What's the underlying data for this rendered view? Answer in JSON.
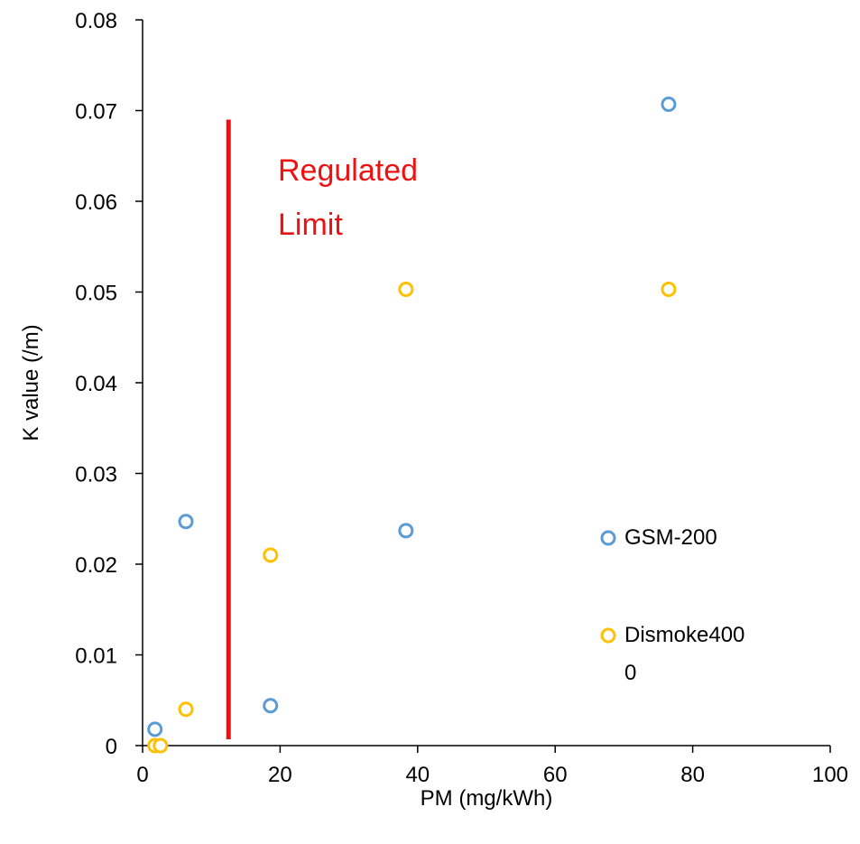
{
  "chart_data": {
    "type": "scatter",
    "xlabel": "PM (mg/kWh)",
    "ylabel": "K value (/m)",
    "xlim": [
      0,
      100
    ],
    "xticks": [
      0,
      20,
      40,
      60,
      80,
      100
    ],
    "ylim": [
      0,
      0.08
    ],
    "yticks": [
      0,
      0.01,
      0.02,
      0.03,
      0.04,
      0.05,
      0.06,
      0.07,
      0.08
    ],
    "series": [
      {
        "name": "GSM-200",
        "color": "#5b9bd5",
        "x": [
          1.8,
          6.3,
          18.6,
          38.3,
          76.5
        ],
        "values": [
          0.0018,
          0.0247,
          0.0044,
          0.0237,
          0.0707
        ]
      },
      {
        "name": "Dismoke4000",
        "color": "#ffc000",
        "x": [
          1.8,
          2.6,
          6.3,
          18.6,
          38.3,
          76.5
        ],
        "values": [
          0,
          0,
          0.004,
          0.021,
          0.0503,
          0.0503
        ]
      }
    ],
    "limit_line": {
      "x": 12.5,
      "y": [
        0.0007,
        0.069
      ],
      "color": "#ee1111"
    },
    "annotation": [
      "Regulated",
      "Limit"
    ],
    "legend": "right"
  }
}
